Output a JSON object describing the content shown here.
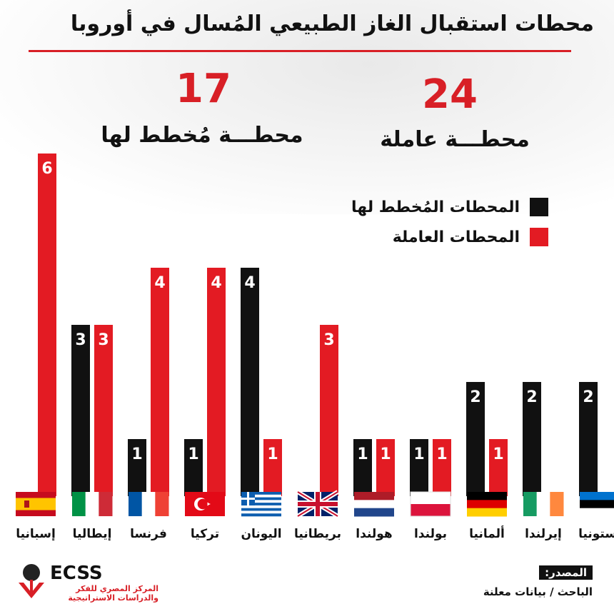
{
  "header": {
    "title": "محطات استقبال الغاز الطبيعي المُسال في أوروبا"
  },
  "stats": {
    "planned_number": "17",
    "planned_label": "محطـــة مُخطط لها",
    "operating_number": "24",
    "operating_label": "محطـــة عاملة"
  },
  "legend": {
    "planned": "المحطات المُخطط لها",
    "operating": "المحطات العاملة"
  },
  "colors": {
    "planned": "#111111",
    "operating": "#e31b23",
    "accent": "#d81f26"
  },
  "chart_data": {
    "type": "bar",
    "categories": [
      "إسبانيا",
      "إيطاليا",
      "فرنسا",
      "تركيا",
      "اليونان",
      "بريطانيا",
      "هولندا",
      "بولندا",
      "ألمانيا",
      "إيرلندا",
      "إستونيا"
    ],
    "series": [
      {
        "name": "المحطات المُخطط لها",
        "values": [
          0,
          3,
          1,
          1,
          4,
          0,
          1,
          1,
          2,
          2,
          2
        ]
      },
      {
        "name": "المحطات العاملة",
        "values": [
          6,
          3,
          4,
          4,
          1,
          3,
          1,
          1,
          1,
          0,
          0
        ]
      }
    ],
    "ylim": [
      0,
      6
    ],
    "grid": false,
    "legend_position": "top-right",
    "flags": [
      "spain-flag-icon",
      "italy-flag-icon",
      "france-flag-icon",
      "turkey-flag-icon",
      "greece-flag-icon",
      "uk-flag-icon",
      "netherlands-flag-icon",
      "poland-flag-icon",
      "germany-flag-icon",
      "ireland-flag-icon",
      "estonia-flag-icon"
    ]
  },
  "logo": {
    "name": "ECSS",
    "subtitle": "المركز المصري للفكر والدراسات الاستراتيجية"
  },
  "source": {
    "label": "المصدر:",
    "text": "الباحث / بيانات معلنة"
  }
}
